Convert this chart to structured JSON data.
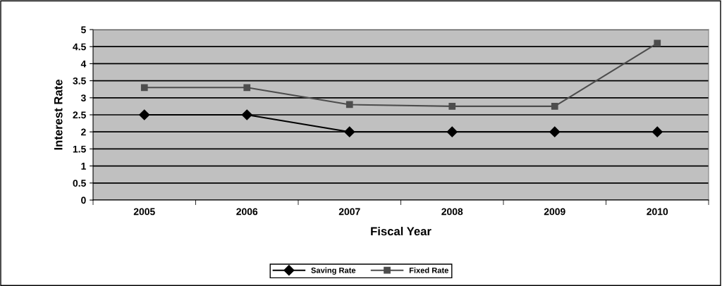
{
  "chart_data": {
    "type": "line",
    "xlabel": "Fiscal Year",
    "ylabel": "Interest Rate",
    "categories": [
      "2005",
      "2006",
      "2007",
      "2008",
      "2009",
      "2010"
    ],
    "series": [
      {
        "name": "Saving Rate",
        "color": "#000000",
        "marker": "diamond",
        "values": [
          2.5,
          2.5,
          2,
          2,
          2,
          2
        ]
      },
      {
        "name": "Fixed Rate",
        "color": "#4d4d4d",
        "marker": "square",
        "values": [
          3.3,
          3.3,
          2.8,
          2.75,
          2.75,
          4.6
        ]
      }
    ],
    "ylim": [
      0,
      5
    ],
    "yticks": [
      0,
      0.5,
      1,
      1.5,
      2,
      2.5,
      3,
      3.5,
      4,
      4.5,
      5
    ],
    "grid": "y",
    "legend": "bottom",
    "line_style": "solid"
  }
}
